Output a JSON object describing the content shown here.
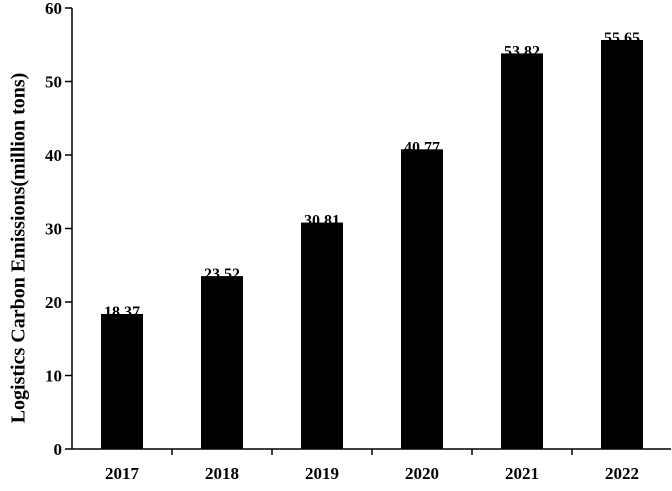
{
  "chart_data": {
    "type": "bar",
    "y_label": "Logistics Carbon Emissions(million tons)",
    "categories": [
      "2017",
      "2018",
      "2019",
      "2020",
      "2021",
      "2022"
    ],
    "values": [
      18.37,
      23.52,
      30.81,
      40.77,
      53.82,
      55.65
    ],
    "color": "#000000",
    "ylim": [
      0,
      60
    ],
    "yticks": [
      0,
      10,
      20,
      30,
      40,
      50,
      60
    ],
    "grid": false
  }
}
